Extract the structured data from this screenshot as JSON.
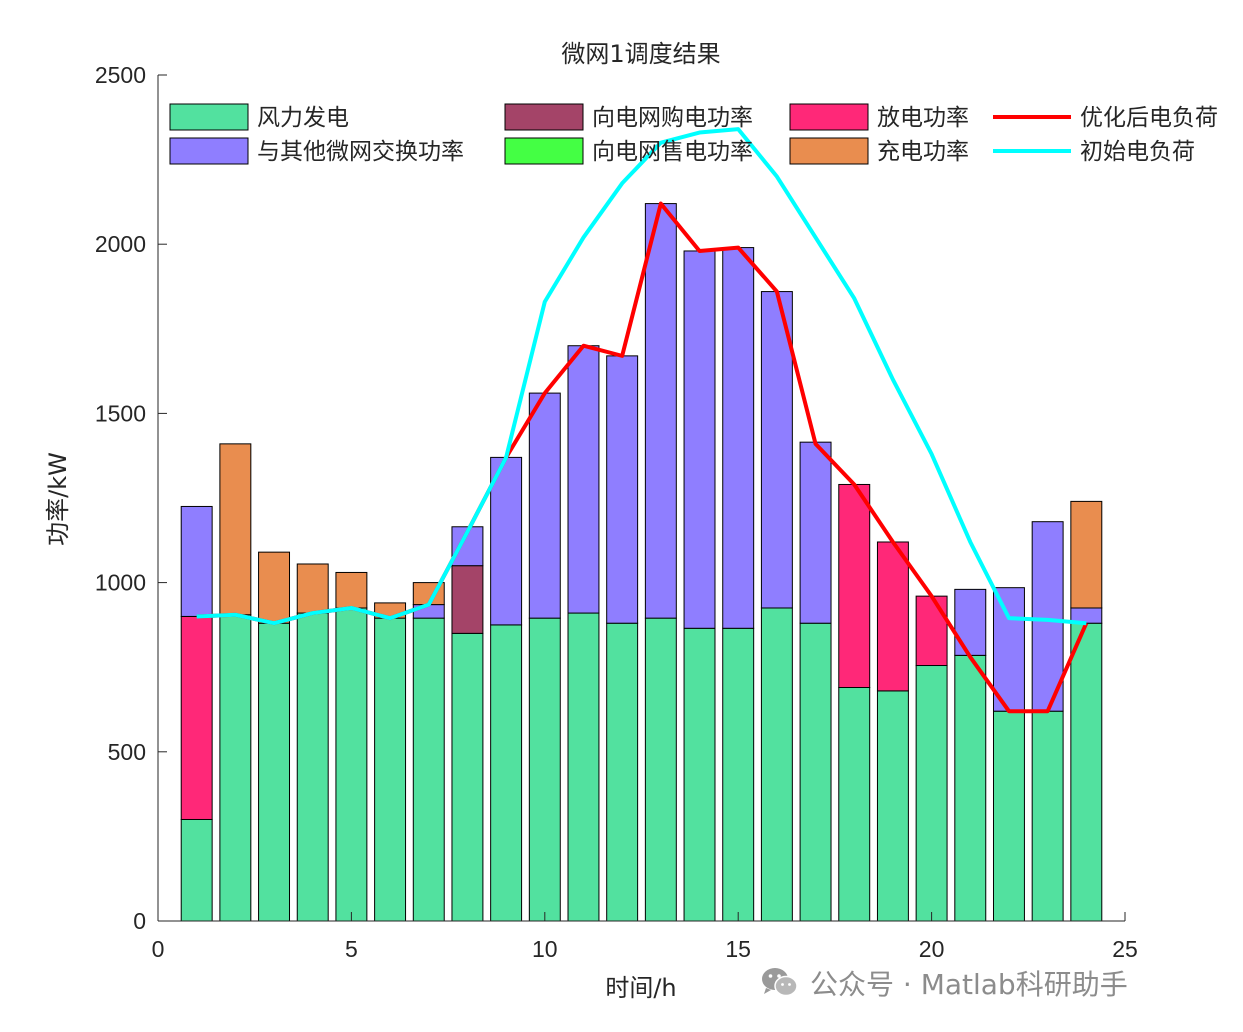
{
  "chart_data": {
    "type": "bar",
    "stacked": true,
    "title": "微网1调度结果",
    "xlabel": "时间/h",
    "ylabel": "功率/kW",
    "xlim": [
      0,
      25
    ],
    "ylim": [
      0,
      2500
    ],
    "xticks": [
      0,
      5,
      10,
      15,
      20,
      25
    ],
    "yticks": [
      0,
      500,
      1000,
      1500,
      2000,
      2500
    ],
    "x": [
      1,
      2,
      3,
      4,
      5,
      6,
      7,
      8,
      9,
      10,
      11,
      12,
      13,
      14,
      15,
      16,
      17,
      18,
      19,
      20,
      21,
      22,
      23,
      24
    ],
    "series": [
      {
        "name": "风力发电",
        "color": "#52E19F",
        "values": [
          300,
          905,
          880,
          910,
          925,
          895,
          895,
          850,
          875,
          895,
          910,
          880,
          895,
          865,
          865,
          925,
          880,
          690,
          680,
          755,
          785,
          620,
          620,
          880
        ]
      },
      {
        "name": "放电功率",
        "color": "#FF2878",
        "values": [
          600,
          0,
          0,
          0,
          0,
          0,
          0,
          0,
          0,
          0,
          0,
          0,
          0,
          0,
          0,
          0,
          0,
          600,
          440,
          205,
          0,
          0,
          0,
          0
        ]
      },
      {
        "name": "向电网购电功率",
        "color": "#A44468",
        "values": [
          0,
          0,
          0,
          0,
          0,
          0,
          0,
          200,
          0,
          0,
          0,
          0,
          0,
          0,
          0,
          0,
          0,
          0,
          0,
          0,
          0,
          0,
          0,
          0
        ]
      },
      {
        "name": "与其他微网交换功率",
        "color": "#8F7EFF",
        "values": [
          325,
          0,
          0,
          0,
          0,
          0,
          40,
          115,
          495,
          665,
          790,
          790,
          1225,
          1115,
          1125,
          935,
          535,
          0,
          0,
          0,
          195,
          365,
          560,
          45
        ]
      },
      {
        "name": "向电网售电功率",
        "color": "#44FF44",
        "values": [
          0,
          0,
          0,
          0,
          0,
          0,
          0,
          0,
          0,
          0,
          0,
          0,
          0,
          0,
          0,
          0,
          0,
          0,
          0,
          0,
          0,
          0,
          0,
          0
        ]
      },
      {
        "name": "充电功率",
        "color": "#E98D4F",
        "values": [
          0,
          505,
          210,
          145,
          105,
          45,
          65,
          0,
          0,
          0,
          0,
          0,
          0,
          0,
          0,
          0,
          0,
          0,
          0,
          0,
          0,
          0,
          0,
          315
        ]
      }
    ],
    "lines": [
      {
        "name": "优化后电负荷",
        "color": "#FF0000",
        "values": [
          900,
          905,
          880,
          910,
          925,
          895,
          935,
          1150,
          1370,
          1560,
          1700,
          1670,
          2120,
          1980,
          1990,
          1860,
          1410,
          1290,
          1120,
          960,
          780,
          620,
          620,
          880
        ]
      },
      {
        "name": "初始电负荷",
        "color": "#00FFFF",
        "values": [
          900,
          905,
          880,
          910,
          925,
          895,
          935,
          1150,
          1370,
          1830,
          2020,
          2180,
          2300,
          2330,
          2340,
          2200,
          2020,
          1840,
          1600,
          1380,
          1120,
          895,
          890,
          880
        ]
      }
    ],
    "legend": {
      "position": "top",
      "entries": [
        "风力发电",
        "与其他微网交换功率",
        "向电网购电功率",
        "向电网售电功率",
        "放电功率",
        "充电功率",
        "优化后电负荷",
        "初始电负荷"
      ]
    }
  },
  "watermark": {
    "text": "公众号 · Matlab科研助手",
    "icon": "wechat-icon"
  }
}
